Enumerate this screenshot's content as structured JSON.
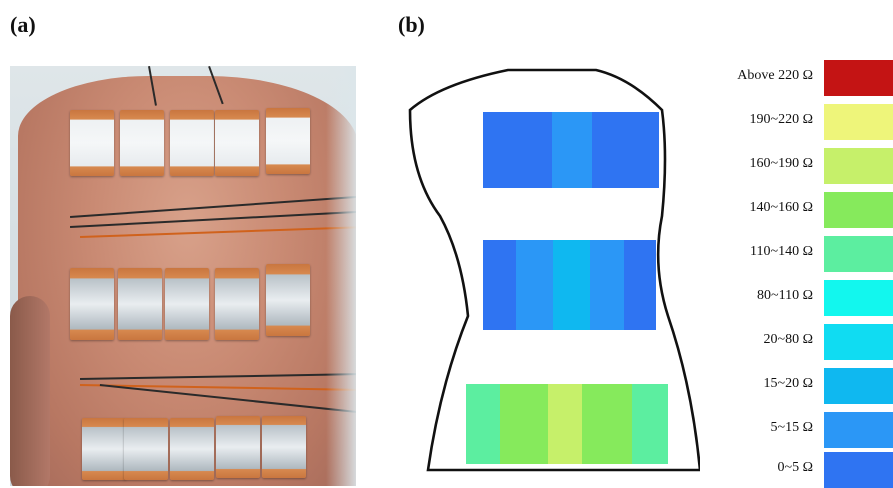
{
  "labels": {
    "a": "(a)",
    "b": "(b)"
  },
  "legend": [
    {
      "label": "Above 220 Ω",
      "color": "#c41414"
    },
    {
      "label": "190~220 Ω",
      "color": "#eef57a"
    },
    {
      "label": "160~190 Ω",
      "color": "#c6f06a"
    },
    {
      "label": "140~160 Ω",
      "color": "#86ea5c"
    },
    {
      "label": "110~140 Ω",
      "color": "#5ceea0"
    },
    {
      "label": "80~110 Ω",
      "color": "#12f7ee"
    },
    {
      "label": "20~80 Ω",
      "color": "#10dcf2"
    },
    {
      "label": "15~20 Ω",
      "color": "#0fb8f0"
    },
    {
      "label": "5~15 Ω",
      "color": "#2b97f6"
    },
    {
      "label": "0~5 Ω",
      "color": "#2f74f2"
    }
  ],
  "sensor_map": [
    [
      "#2f74f2",
      "#2f74f2",
      "#2b97f6",
      "#2f74f2",
      "#2f74f2"
    ],
    [
      "#2f74f2",
      "#2b97f6",
      "#0fb8f0",
      "#2b97f6",
      "#2f74f2"
    ],
    [
      "#5ceea0",
      "#86ea5c",
      "#c6f06a",
      "#86ea5c",
      "#5ceea0"
    ]
  ]
}
